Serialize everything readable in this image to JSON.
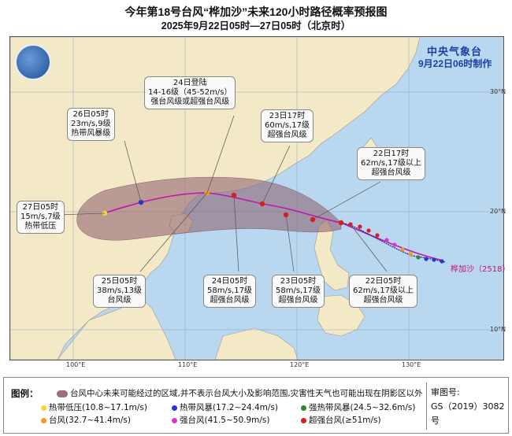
{
  "header": {
    "title": "今年第18号台风“桦加沙”未来120小时路径概率预报图",
    "subtitle": "2025年9月22日05时—27日05时（北京时）"
  },
  "issuer": {
    "name": "中央气象台",
    "date": "9月22日06时制作"
  },
  "typhoon": {
    "label": "桦加沙（2518）"
  },
  "callouts": [
    {
      "id": "c-24-landfall",
      "lines": [
        "24日登陆",
        "14-16级（45-52m/s）",
        "强台风级或超强台风级"
      ]
    },
    {
      "id": "c-26-05",
      "lines": [
        "26日05时",
        "23m/s,9级",
        "热带风暴级"
      ]
    },
    {
      "id": "c-23-17",
      "lines": [
        "23日17时",
        "60m/s,17级",
        "超强台风级"
      ]
    },
    {
      "id": "c-22-17",
      "lines": [
        "22日17时",
        "62m/s,17级以上",
        "超强台风级"
      ]
    },
    {
      "id": "c-27-05",
      "lines": [
        "27日05时",
        "15m/s,7级",
        "热带低压"
      ]
    },
    {
      "id": "c-25-05",
      "lines": [
        "25日05时",
        "38m/s,13级",
        "台风级"
      ]
    },
    {
      "id": "c-24-05",
      "lines": [
        "24日05时",
        "58m/s,17级",
        "超强台风级"
      ]
    },
    {
      "id": "c-23-05",
      "lines": [
        "23日05时",
        "58m/s,17级",
        "超强台风级"
      ]
    },
    {
      "id": "c-22-05",
      "lines": [
        "22日05时",
        "62m/s,17级以上",
        "超强台风级"
      ]
    }
  ],
  "axes": {
    "longitudes": [
      "100°E",
      "110°E",
      "120°E",
      "130°E"
    ],
    "latitudes": [
      "30°N",
      "20°N",
      "10°N"
    ]
  },
  "legend": {
    "title": "图例：",
    "area_text": "台风中心未来可能经过的区域,并不表示台风大小及影响范围,灾害性天气也可能出现在阴影区以外",
    "items": [
      {
        "label": "热带低压(10.8~17.1m/s)",
        "color": "#f5d63a"
      },
      {
        "label": "热带风暴(17.2~24.4m/s)",
        "color": "#2538c9"
      },
      {
        "label": "强热带风暴(24.5~32.6m/s)",
        "color": "#2a8a2a"
      },
      {
        "label": "台风(32.7~41.4m/s)",
        "color": "#f29a1f"
      },
      {
        "label": "强台风(41.5~50.9m/s)",
        "color": "#d63ad6"
      },
      {
        "label": "超强台风(≥51m/s)",
        "color": "#d81e1e"
      }
    ]
  },
  "approval": {
    "label": "审图号:",
    "number": "GS（2019）3082号"
  }
}
